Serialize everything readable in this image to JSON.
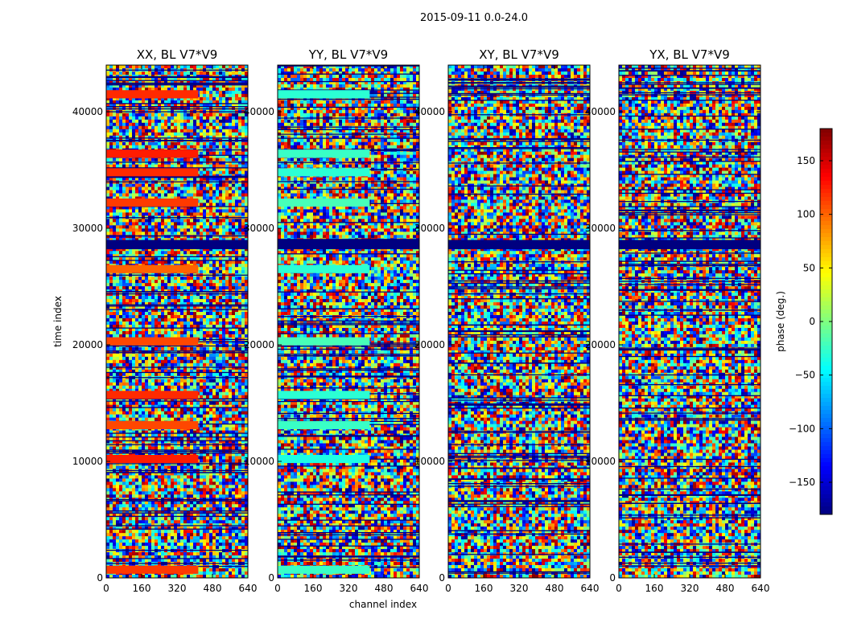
{
  "figure": {
    "suptitle": "2015-09-11 0.0-24.0",
    "xlabel": "channel index",
    "ylabel": "time index"
  },
  "chart_data": {
    "type": "heatmap",
    "title": "2015-09-11 0.0-24.0",
    "xlabel": "channel index",
    "ylabel": "time index",
    "xlim": [
      0,
      640
    ],
    "ylim": [
      0,
      44000
    ],
    "xticks": [
      0,
      160,
      320,
      480,
      640
    ],
    "yticks": [
      0,
      10000,
      20000,
      30000,
      40000
    ],
    "xtick_labels": [
      "0",
      "160",
      "320",
      "480",
      "640"
    ],
    "ytick_labels": [
      "0",
      "10000",
      "20000",
      "30000",
      "40000"
    ],
    "panels": [
      {
        "title": "XX, BL V7*V9",
        "pol": "XX"
      },
      {
        "title": "YY, BL V7*V9",
        "pol": "YY"
      },
      {
        "title": "XY, BL V7*V9",
        "pol": "XY"
      },
      {
        "title": "YX, BL V7*V9",
        "pol": "YX"
      }
    ],
    "colorbar": {
      "label": "phase (deg.)",
      "vmin": -180,
      "vmax": 180,
      "ticks": [
        -150,
        -100,
        -50,
        0,
        50,
        100,
        150
      ],
      "tick_labels": [
        "−150",
        "−100",
        "−50",
        "0",
        "50",
        "100",
        "150"
      ],
      "colormap": "jet"
    },
    "flagged_band": {
      "t_start": 29000,
      "t_end": 28200,
      "phase": -180
    },
    "coherent_bands": [
      {
        "t": 41500,
        "phase_XX": 120,
        "phase_YY": -30
      },
      {
        "t": 36400,
        "phase_XX": 125,
        "phase_YY": -25
      },
      {
        "t": 34800,
        "phase_XX": 120,
        "phase_YY": -30
      },
      {
        "t": 32200,
        "phase_XX": 115,
        "phase_YY": -20
      },
      {
        "t": 26500,
        "phase_XX": 100,
        "phase_YY": -30
      },
      {
        "t": 20300,
        "phase_XX": 110,
        "phase_YY": -20
      },
      {
        "t": 15700,
        "phase_XX": 120,
        "phase_YY": -30
      },
      {
        "t": 13100,
        "phase_XX": 110,
        "phase_YY": -25
      },
      {
        "t": 10200,
        "phase_XX": 125,
        "phase_YY": -35
      },
      {
        "t": 700,
        "phase_XX": 115,
        "phase_YY": -25
      }
    ]
  }
}
